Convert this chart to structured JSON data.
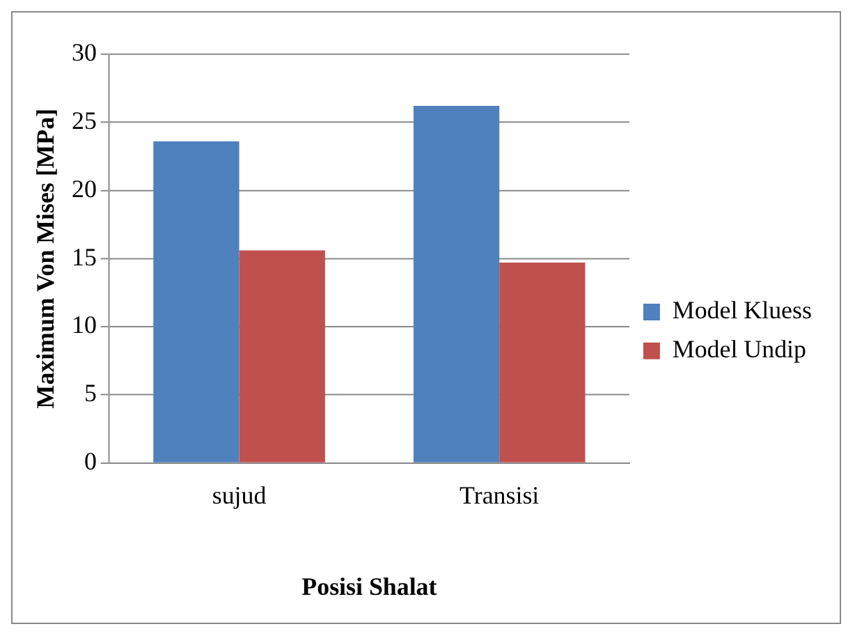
{
  "chart_data": {
    "type": "bar",
    "xlabel": "Posisi Shalat",
    "ylabel": "Maximum Von Mises [MPa]",
    "categories": [
      "sujud",
      "Transisi"
    ],
    "series": [
      {
        "name": "Model Kluess",
        "color": "#4f81bd",
        "values": [
          23.6,
          26.2
        ]
      },
      {
        "name": "Model Undip",
        "color": "#c0504d",
        "values": [
          15.6,
          14.7
        ]
      }
    ],
    "ylim": [
      0,
      30
    ],
    "yticks": [
      0,
      5,
      10,
      15,
      20,
      25,
      30
    ],
    "grid": "y",
    "legend": "right"
  }
}
